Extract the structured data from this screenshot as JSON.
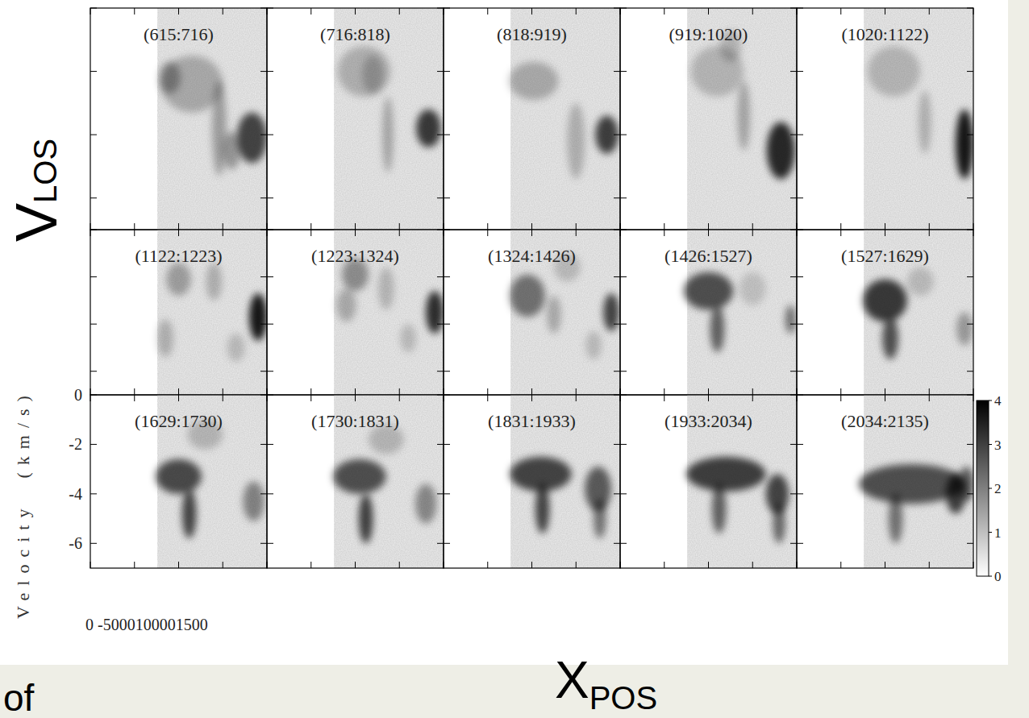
{
  "chart_data": {
    "type": "image_grid",
    "ylabel": "Velocity  (km/s)",
    "overlay_labels": {
      "y": {
        "main": "V",
        "sub": "LOS"
      },
      "x": {
        "main": "X",
        "sub": "POS"
      }
    },
    "annotations": [
      "of",
      "0 -5000100001500"
    ],
    "xlim": [
      -500,
      1500
    ],
    "xticks": [
      -500,
      0,
      500,
      1000,
      1500
    ],
    "ylim": [
      -7,
      0
    ],
    "yticks": [
      -6,
      -4,
      -2,
      0
    ],
    "tick_labels": "y",
    "observed_xlim": [
      260,
      1500
    ],
    "colorbar": {
      "range": [
        0,
        4
      ],
      "ticks": [
        0,
        1,
        2,
        3,
        4
      ]
    },
    "panels": [
      {
        "title": "(615:716)",
        "features": [
          {
            "x": 650,
            "v": -2.4,
            "x_width": 350,
            "v_width": 0.9,
            "intensity": 1.0
          },
          {
            "x": 400,
            "v": -2.2,
            "x_width": 120,
            "v_width": 0.5,
            "intensity": 1.3
          },
          {
            "x": 960,
            "v": -3.8,
            "x_width": 80,
            "v_width": 1.5,
            "intensity": 1.2
          },
          {
            "x": 1100,
            "v": -4.5,
            "x_width": 100,
            "v_width": 0.6,
            "intensity": 1.3
          },
          {
            "x": 1330,
            "v": -4.1,
            "x_width": 170,
            "v_width": 0.8,
            "intensity": 2.8
          }
        ]
      },
      {
        "title": "(716:818)",
        "features": [
          {
            "x": 600,
            "v": -2.0,
            "x_width": 300,
            "v_width": 0.8,
            "intensity": 0.9
          },
          {
            "x": 700,
            "v": -2.1,
            "x_width": 120,
            "v_width": 0.6,
            "intensity": 0.8
          },
          {
            "x": 870,
            "v": -4.0,
            "x_width": 60,
            "v_width": 1.2,
            "intensity": 1.1
          },
          {
            "x": 1330,
            "v": -3.8,
            "x_width": 140,
            "v_width": 0.6,
            "intensity": 3.0
          }
        ]
      },
      {
        "title": "(818:919)",
        "features": [
          {
            "x": 520,
            "v": -2.3,
            "x_width": 280,
            "v_width": 0.6,
            "intensity": 1.0
          },
          {
            "x": 1000,
            "v": -4.2,
            "x_width": 100,
            "v_width": 1.2,
            "intensity": 0.9
          },
          {
            "x": 1350,
            "v": -4.0,
            "x_width": 130,
            "v_width": 0.6,
            "intensity": 2.9
          }
        ]
      },
      {
        "title": "(919:1020)",
        "features": [
          {
            "x": 600,
            "v": -2.0,
            "x_width": 300,
            "v_width": 0.8,
            "intensity": 0.8
          },
          {
            "x": 750,
            "v": -1.2,
            "x_width": 120,
            "v_width": 0.5,
            "intensity": 0.8
          },
          {
            "x": 900,
            "v": -3.4,
            "x_width": 70,
            "v_width": 1.1,
            "intensity": 1.1
          },
          {
            "x": 1320,
            "v": -4.5,
            "x_width": 160,
            "v_width": 0.9,
            "intensity": 3.3
          }
        ]
      },
      {
        "title": "(1020:1122)",
        "features": [
          {
            "x": 600,
            "v": -2.0,
            "x_width": 300,
            "v_width": 0.8,
            "intensity": 0.8
          },
          {
            "x": 950,
            "v": -3.6,
            "x_width": 70,
            "v_width": 1.0,
            "intensity": 0.9
          },
          {
            "x": 1400,
            "v": -4.3,
            "x_width": 100,
            "v_width": 1.1,
            "intensity": 3.6
          }
        ]
      },
      {
        "title": "(1122:1223)",
        "features": [
          {
            "x": 500,
            "v": -2.1,
            "x_width": 140,
            "v_width": 0.7,
            "intensity": 1.2
          },
          {
            "x": 350,
            "v": -4.6,
            "x_width": 90,
            "v_width": 0.8,
            "intensity": 0.9
          },
          {
            "x": 900,
            "v": -2.2,
            "x_width": 90,
            "v_width": 0.8,
            "intensity": 0.9
          },
          {
            "x": 1150,
            "v": -5.0,
            "x_width": 100,
            "v_width": 0.6,
            "intensity": 0.7
          },
          {
            "x": 1400,
            "v": -3.7,
            "x_width": 100,
            "v_width": 1.0,
            "intensity": 3.6
          }
        ]
      },
      {
        "title": "(1223:1324)",
        "features": [
          {
            "x": 500,
            "v": -1.9,
            "x_width": 150,
            "v_width": 0.7,
            "intensity": 1.5
          },
          {
            "x": 400,
            "v": -3.2,
            "x_width": 110,
            "v_width": 0.7,
            "intensity": 1.0
          },
          {
            "x": 850,
            "v": -2.5,
            "x_width": 90,
            "v_width": 0.9,
            "intensity": 0.8
          },
          {
            "x": 1100,
            "v": -4.6,
            "x_width": 90,
            "v_width": 0.6,
            "intensity": 0.7
          },
          {
            "x": 1400,
            "v": -3.5,
            "x_width": 100,
            "v_width": 0.9,
            "intensity": 3.2
          }
        ]
      },
      {
        "title": "(1324:1426)",
        "features": [
          {
            "x": 450,
            "v": -2.8,
            "x_width": 200,
            "v_width": 0.9,
            "intensity": 2.0
          },
          {
            "x": 750,
            "v": -3.6,
            "x_width": 80,
            "v_width": 0.8,
            "intensity": 1.0
          },
          {
            "x": 900,
            "v": -1.6,
            "x_width": 150,
            "v_width": 0.6,
            "intensity": 0.7
          },
          {
            "x": 1200,
            "v": -4.9,
            "x_width": 90,
            "v_width": 0.6,
            "intensity": 0.7
          },
          {
            "x": 1400,
            "v": -3.5,
            "x_width": 90,
            "v_width": 0.8,
            "intensity": 2.8
          }
        ]
      },
      {
        "title": "(1426:1527)",
        "features": [
          {
            "x": 500,
            "v": -2.6,
            "x_width": 280,
            "v_width": 0.8,
            "intensity": 2.6
          },
          {
            "x": 600,
            "v": -4.2,
            "x_width": 80,
            "v_width": 1.0,
            "intensity": 2.3
          },
          {
            "x": 1000,
            "v": -2.5,
            "x_width": 150,
            "v_width": 0.7,
            "intensity": 0.6
          },
          {
            "x": 1430,
            "v": -3.8,
            "x_width": 60,
            "v_width": 0.6,
            "intensity": 2.0
          }
        ]
      },
      {
        "title": "(1527:1629)",
        "features": [
          {
            "x": 500,
            "v": -3.0,
            "x_width": 250,
            "v_width": 0.9,
            "intensity": 3.0
          },
          {
            "x": 560,
            "v": -4.6,
            "x_width": 90,
            "v_width": 0.9,
            "intensity": 2.6
          },
          {
            "x": 900,
            "v": -2.2,
            "x_width": 150,
            "v_width": 0.6,
            "intensity": 0.7
          },
          {
            "x": 1400,
            "v": -4.2,
            "x_width": 90,
            "v_width": 0.7,
            "intensity": 1.3
          }
        ]
      },
      {
        "title": "(1629:1730)",
        "features": [
          {
            "x": 500,
            "v": -3.3,
            "x_width": 260,
            "v_width": 0.7,
            "intensity": 2.7
          },
          {
            "x": 620,
            "v": -4.8,
            "x_width": 80,
            "v_width": 1.0,
            "intensity": 2.8
          },
          {
            "x": 800,
            "v": -1.6,
            "x_width": 200,
            "v_width": 0.6,
            "intensity": 0.8
          },
          {
            "x": 1350,
            "v": -4.3,
            "x_width": 120,
            "v_width": 0.8,
            "intensity": 1.7
          }
        ]
      },
      {
        "title": "(1730:1831)",
        "features": [
          {
            "x": 550,
            "v": -3.3,
            "x_width": 300,
            "v_width": 0.7,
            "intensity": 2.6
          },
          {
            "x": 620,
            "v": -5.0,
            "x_width": 80,
            "v_width": 1.0,
            "intensity": 2.9
          },
          {
            "x": 850,
            "v": -1.8,
            "x_width": 200,
            "v_width": 0.6,
            "intensity": 0.8
          },
          {
            "x": 1300,
            "v": -4.4,
            "x_width": 120,
            "v_width": 0.8,
            "intensity": 1.6
          }
        ]
      },
      {
        "title": "(1831:1933)",
        "features": [
          {
            "x": 600,
            "v": -3.2,
            "x_width": 350,
            "v_width": 0.7,
            "intensity": 2.8
          },
          {
            "x": 620,
            "v": -4.6,
            "x_width": 80,
            "v_width": 1.0,
            "intensity": 2.8
          },
          {
            "x": 1250,
            "v": -3.8,
            "x_width": 150,
            "v_width": 0.9,
            "intensity": 2.4
          },
          {
            "x": 1270,
            "v": -5.0,
            "x_width": 70,
            "v_width": 0.8,
            "intensity": 2.0
          }
        ]
      },
      {
        "title": "(1933:2034)",
        "features": [
          {
            "x": 700,
            "v": -3.2,
            "x_width": 450,
            "v_width": 0.7,
            "intensity": 2.9
          },
          {
            "x": 620,
            "v": -4.6,
            "x_width": 80,
            "v_width": 1.0,
            "intensity": 2.3
          },
          {
            "x": 1280,
            "v": -4.0,
            "x_width": 130,
            "v_width": 0.8,
            "intensity": 2.8
          },
          {
            "x": 1300,
            "v": -5.2,
            "x_width": 70,
            "v_width": 0.8,
            "intensity": 2.2
          }
        ]
      },
      {
        "title": "(2034:2135)",
        "features": [
          {
            "x": 800,
            "v": -3.6,
            "x_width": 600,
            "v_width": 0.8,
            "intensity": 2.6
          },
          {
            "x": 620,
            "v": -5.0,
            "x_width": 80,
            "v_width": 1.0,
            "intensity": 2.0
          },
          {
            "x": 1300,
            "v": -4.0,
            "x_width": 110,
            "v_width": 0.8,
            "intensity": 2.9
          },
          {
            "x": 1420,
            "v": -3.6,
            "x_width": 90,
            "v_width": 0.7,
            "intensity": 2.3
          }
        ]
      }
    ]
  }
}
